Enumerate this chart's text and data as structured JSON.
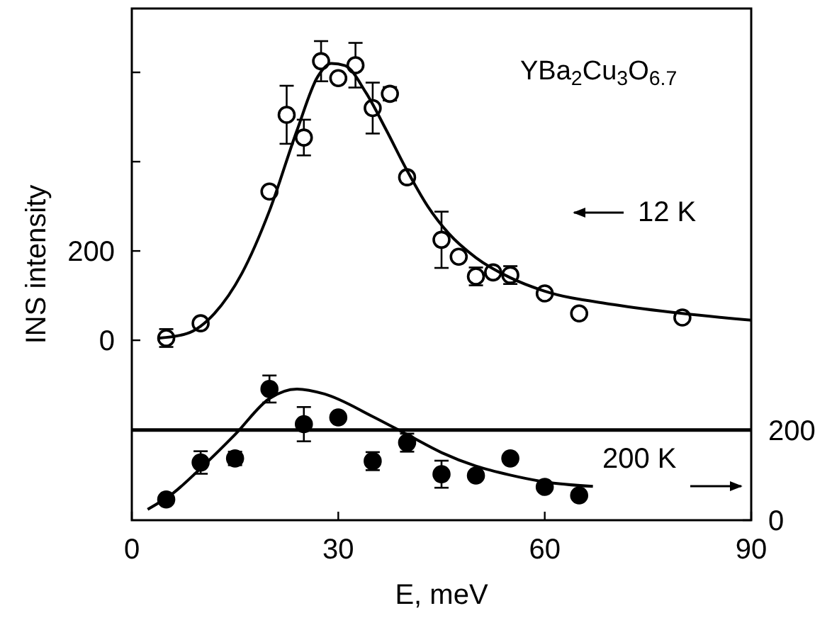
{
  "chart_data": {
    "type": "scatter",
    "xlabel": "E, meV",
    "ylabel": "INS intensity",
    "annotations": [
      "YBa$_{2}$Cu$_{3}$O$_{6.7}$"
    ],
    "xlim": [
      0,
      90
    ],
    "xticks": [
      0,
      30,
      60,
      90
    ],
    "ylim": [
      -403,
      743
    ],
    "yticks": [
      0,
      200,
      {
        "value": 400,
        "label": null
      },
      {
        "value": 600,
        "label": null
      }
    ],
    "y2lim": [
      0,
      1135
    ],
    "y2ticks": [
      0,
      200
    ],
    "marker": "circle",
    "grid": false,
    "legend": "right",
    "ref_lines": [
      {
        "axis": "y2",
        "value": 200,
        "color": "#000000"
      }
    ],
    "series": [
      {
        "name": "12 K",
        "color": "#ffffff",
        "x": [
          5,
          10,
          20,
          22.5,
          25,
          27.5,
          30,
          32.5,
          35,
          37.5,
          40,
          45,
          47.5,
          50,
          52.5,
          55,
          60,
          65,
          80
        ],
        "values": [
          5,
          38,
          333,
          505,
          454,
          625,
          587,
          616,
          520,
          552,
          365,
          225,
          187,
          143,
          152,
          146,
          105,
          60,
          51
        ],
        "errors": [
          20,
          null,
          null,
          65,
          40,
          45,
          null,
          50,
          57,
          15,
          null,
          63,
          null,
          20,
          null,
          20,
          null,
          null,
          null
        ]
      },
      {
        "type": "line",
        "marker": "none",
        "color": "#000000",
        "x": [
          4,
          8,
          12,
          16,
          20,
          24,
          27,
          29,
          31,
          34,
          37,
          40,
          43,
          46,
          50,
          55,
          60,
          70,
          80,
          90
        ],
        "values": [
          5,
          15,
          60,
          150,
          290,
          470,
          590,
          620,
          615,
          555,
          470,
          380,
          300,
          240,
          185,
          140,
          110,
          80,
          60,
          45
        ]
      },
      {
        "name": "200 K",
        "axis": "y2",
        "color": "#000000",
        "x": [
          5,
          10,
          15,
          20,
          25,
          30,
          35,
          40,
          45,
          50,
          55,
          60,
          65
        ],
        "values": [
          46,
          128,
          137,
          291,
          213,
          228,
          131,
          172,
          102,
          99,
          137,
          74,
          55
        ],
        "errors": [
          null,
          25,
          15,
          30,
          38,
          null,
          20,
          20,
          30,
          null,
          null,
          null,
          null
        ]
      },
      {
        "type": "line",
        "marker": "none",
        "axis": "y2",
        "color": "#000000",
        "x": [
          2.3,
          6,
          10,
          15,
          20,
          24,
          28,
          35,
          40,
          45,
          50,
          55,
          60,
          67
        ],
        "values": [
          24,
          60,
          115,
          190,
          270,
          291,
          280,
          230,
          190,
          150,
          120,
          100,
          85,
          75
        ]
      }
    ]
  }
}
